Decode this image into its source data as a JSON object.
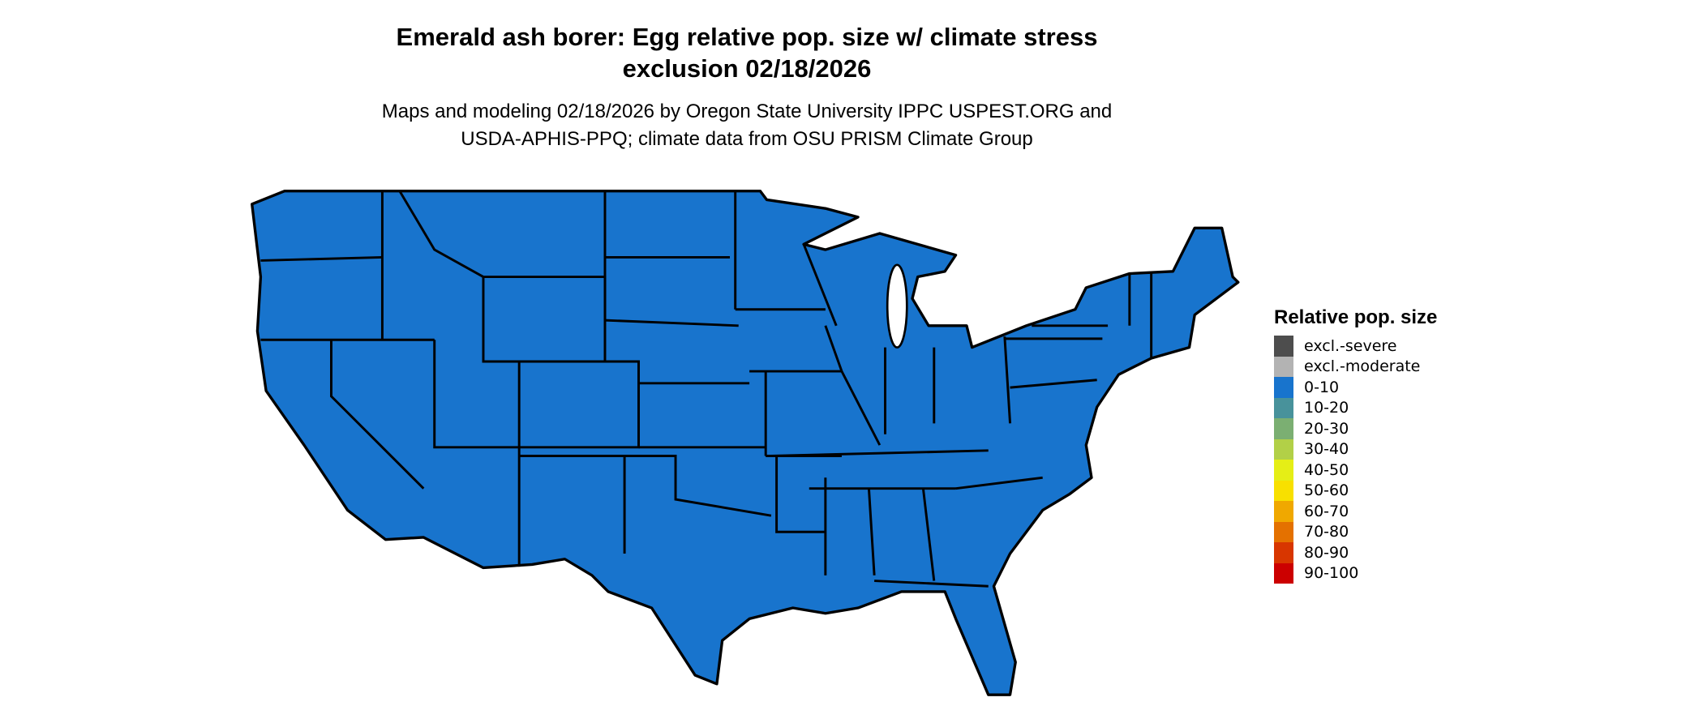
{
  "title": {
    "line1": "Emerald ash borer: Egg relative pop. size w/ climate stress",
    "line2": "exclusion 02/18/2026"
  },
  "subtitle": {
    "line1": "Maps and modeling 02/18/2026 by Oregon State University IPPC USPEST.ORG and",
    "line2": "USDA-APHIS-PPQ; climate data from OSU PRISM Climate Group"
  },
  "map": {
    "region": "Contiguous United States",
    "fill_category": "0-10",
    "fill_color": "#1874CD",
    "border_color": "#000000"
  },
  "legend": {
    "title": "Relative pop. size",
    "items": [
      {
        "label": "excl.-severe",
        "color": "#4D4D4D"
      },
      {
        "label": "excl.-moderate",
        "color": "#B3B3B3"
      },
      {
        "label": "0-10",
        "color": "#1874CD"
      },
      {
        "label": "10-20",
        "color": "#48929B"
      },
      {
        "label": "20-30",
        "color": "#7BAF72"
      },
      {
        "label": "30-40",
        "color": "#B2D047"
      },
      {
        "label": "40-50",
        "color": "#E5EE16"
      },
      {
        "label": "50-60",
        "color": "#F8E000"
      },
      {
        "label": "60-70",
        "color": "#F0A800"
      },
      {
        "label": "70-80",
        "color": "#E47100"
      },
      {
        "label": "80-90",
        "color": "#D83600"
      },
      {
        "label": "90-100",
        "color": "#CC0000"
      }
    ]
  }
}
